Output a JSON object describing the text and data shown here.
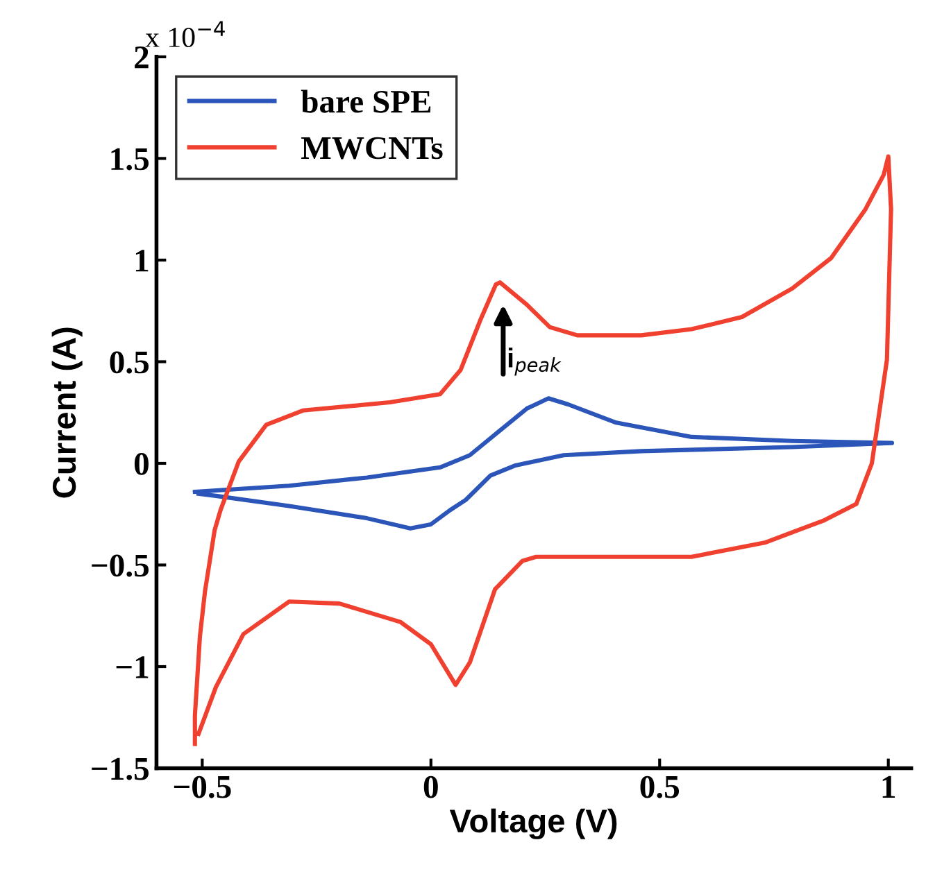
{
  "chart_data": {
    "type": "line",
    "xlabel": "Voltage (V)",
    "ylabel": "Current (A)",
    "xlim": [
      -0.6,
      1.05
    ],
    "ylim": [
      -1.5,
      2
    ],
    "xticks": [
      {
        "value": -0.5,
        "label": "−0.5"
      },
      0,
      0.5,
      1
    ],
    "yticks": [
      {
        "value": -1.5,
        "label": "−1.5"
      },
      {
        "value": -1,
        "label": "−1"
      },
      {
        "value": -0.5,
        "label": "−0.5"
      },
      0,
      0.5,
      1,
      1.5,
      2
    ],
    "grid": false,
    "legend": "top left",
    "marker": "none",
    "line_style": "solid",
    "annotations": [
      "x 10$^{−4}$",
      "i$_{peak}$"
    ],
    "series": [
      {
        "name": "bare SPE",
        "color": "#2b55b8",
        "x": [
          -0.516,
          -0.31,
          -0.14,
          0.02,
          0.085,
          0.15,
          0.21,
          0.257,
          0.3,
          0.405,
          0.57,
          0.79,
          1.008,
          0.79,
          0.46,
          0.29,
          0.185,
          0.13,
          0.076,
          0.042,
          0.0,
          -0.045,
          -0.14,
          -0.31,
          -0.47,
          -0.508
        ],
        "values": [
          -0.14,
          -0.11,
          -0.07,
          -0.02,
          0.04,
          0.16,
          0.27,
          0.32,
          0.29,
          0.2,
          0.13,
          0.11,
          0.1,
          0.08,
          0.06,
          0.04,
          -0.01,
          -0.06,
          -0.18,
          -0.23,
          -0.3,
          -0.32,
          -0.27,
          -0.21,
          -0.16,
          -0.15
        ]
      },
      {
        "name": "MWCNTs",
        "color": "#f0402f",
        "x": [
          -0.516,
          -0.516,
          -0.505,
          -0.494,
          -0.473,
          -0.46,
          -0.42,
          -0.36,
          -0.28,
          -0.09,
          0.02,
          0.065,
          0.109,
          0.142,
          0.151,
          0.21,
          0.26,
          0.32,
          0.46,
          0.57,
          0.68,
          0.79,
          0.875,
          0.95,
          0.99,
          1.0,
          1.006,
          0.997,
          0.964,
          0.93,
          0.86,
          0.73,
          0.57,
          0.23,
          0.2,
          0.14,
          0.085,
          0.054,
          0.0,
          -0.067,
          -0.2,
          -0.31,
          -0.41,
          -0.47,
          -0.508
        ],
        "values": [
          -1.38,
          -1.24,
          -0.85,
          -0.63,
          -0.33,
          -0.23,
          0.01,
          0.19,
          0.26,
          0.3,
          0.34,
          0.46,
          0.71,
          0.88,
          0.89,
          0.78,
          0.67,
          0.63,
          0.63,
          0.66,
          0.72,
          0.86,
          1.01,
          1.25,
          1.42,
          1.51,
          1.25,
          0.51,
          0.0,
          -0.2,
          -0.28,
          -0.39,
          -0.46,
          -0.46,
          -0.48,
          -0.62,
          -0.98,
          -1.09,
          -0.89,
          -0.78,
          -0.69,
          -0.68,
          -0.84,
          -1.1,
          -1.33
        ]
      }
    ]
  }
}
